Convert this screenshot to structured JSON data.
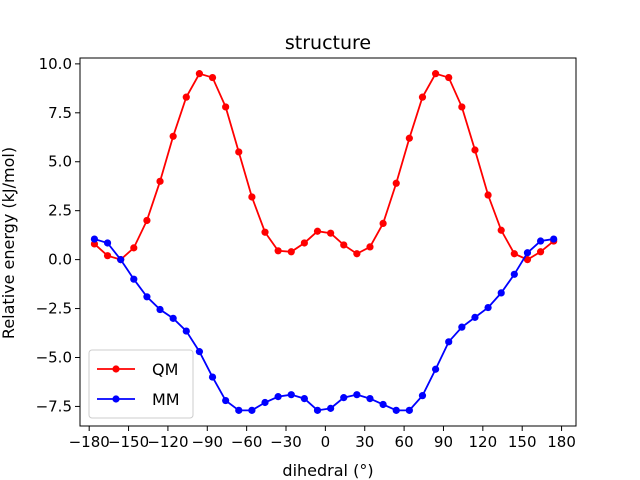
{
  "chart_data": {
    "type": "line",
    "title": "structure",
    "xlabel": "dihedral (°)",
    "ylabel": "Relative energy (kJ/mol)",
    "xlim": [
      -187,
      191
    ],
    "ylim": [
      -8.5,
      10.3
    ],
    "xticks": [
      -180,
      -150,
      -120,
      -90,
      -60,
      -30,
      0,
      30,
      60,
      90,
      120,
      150,
      180
    ],
    "xtick_labels": [
      "−180",
      "−150",
      "−120",
      "−90",
      "−60",
      "−30",
      "0",
      "30",
      "60",
      "90",
      "120",
      "150",
      "180"
    ],
    "yticks": [
      -7.5,
      -5.0,
      -2.5,
      0.0,
      2.5,
      5.0,
      7.5,
      10.0
    ],
    "ytick_labels": [
      "−7.5",
      "−5.0",
      "−2.5",
      "0.0",
      "2.5",
      "5.0",
      "7.5",
      "10.0"
    ],
    "legend_position": "lower-left",
    "x": [
      -176,
      -166,
      -156,
      -146,
      -136,
      -126,
      -116,
      -106,
      -96,
      -86,
      -76,
      -66,
      -56,
      -46,
      -36,
      -26,
      -16,
      -6,
      4,
      14,
      24,
      34,
      44,
      54,
      64,
      74,
      84,
      94,
      104,
      114,
      124,
      134,
      144,
      154,
      164,
      174
    ],
    "series": [
      {
        "name": "QM",
        "color": "#ff0000",
        "values": [
          0.8,
          0.2,
          0.0,
          0.6,
          2.0,
          4.0,
          6.3,
          8.3,
          9.5,
          9.3,
          7.8,
          5.5,
          3.2,
          1.4,
          0.45,
          0.4,
          0.85,
          1.45,
          1.35,
          0.75,
          0.3,
          0.65,
          1.85,
          3.9,
          6.2,
          8.3,
          9.5,
          9.3,
          7.8,
          5.6,
          3.3,
          1.5,
          0.3,
          0.0,
          0.4,
          0.95
        ]
      },
      {
        "name": "MM",
        "color": "#0000ff",
        "values": [
          1.05,
          0.85,
          0.0,
          -1.0,
          -1.9,
          -2.55,
          -3.0,
          -3.65,
          -4.7,
          -6.0,
          -7.2,
          -7.7,
          -7.7,
          -7.3,
          -7.0,
          -6.9,
          -7.1,
          -7.7,
          -7.6,
          -7.05,
          -6.9,
          -7.1,
          -7.4,
          -7.7,
          -7.7,
          -6.95,
          -5.6,
          -4.2,
          -3.45,
          -2.95,
          -2.45,
          -1.7,
          -0.75,
          0.35,
          0.95,
          1.05
        ]
      }
    ]
  }
}
